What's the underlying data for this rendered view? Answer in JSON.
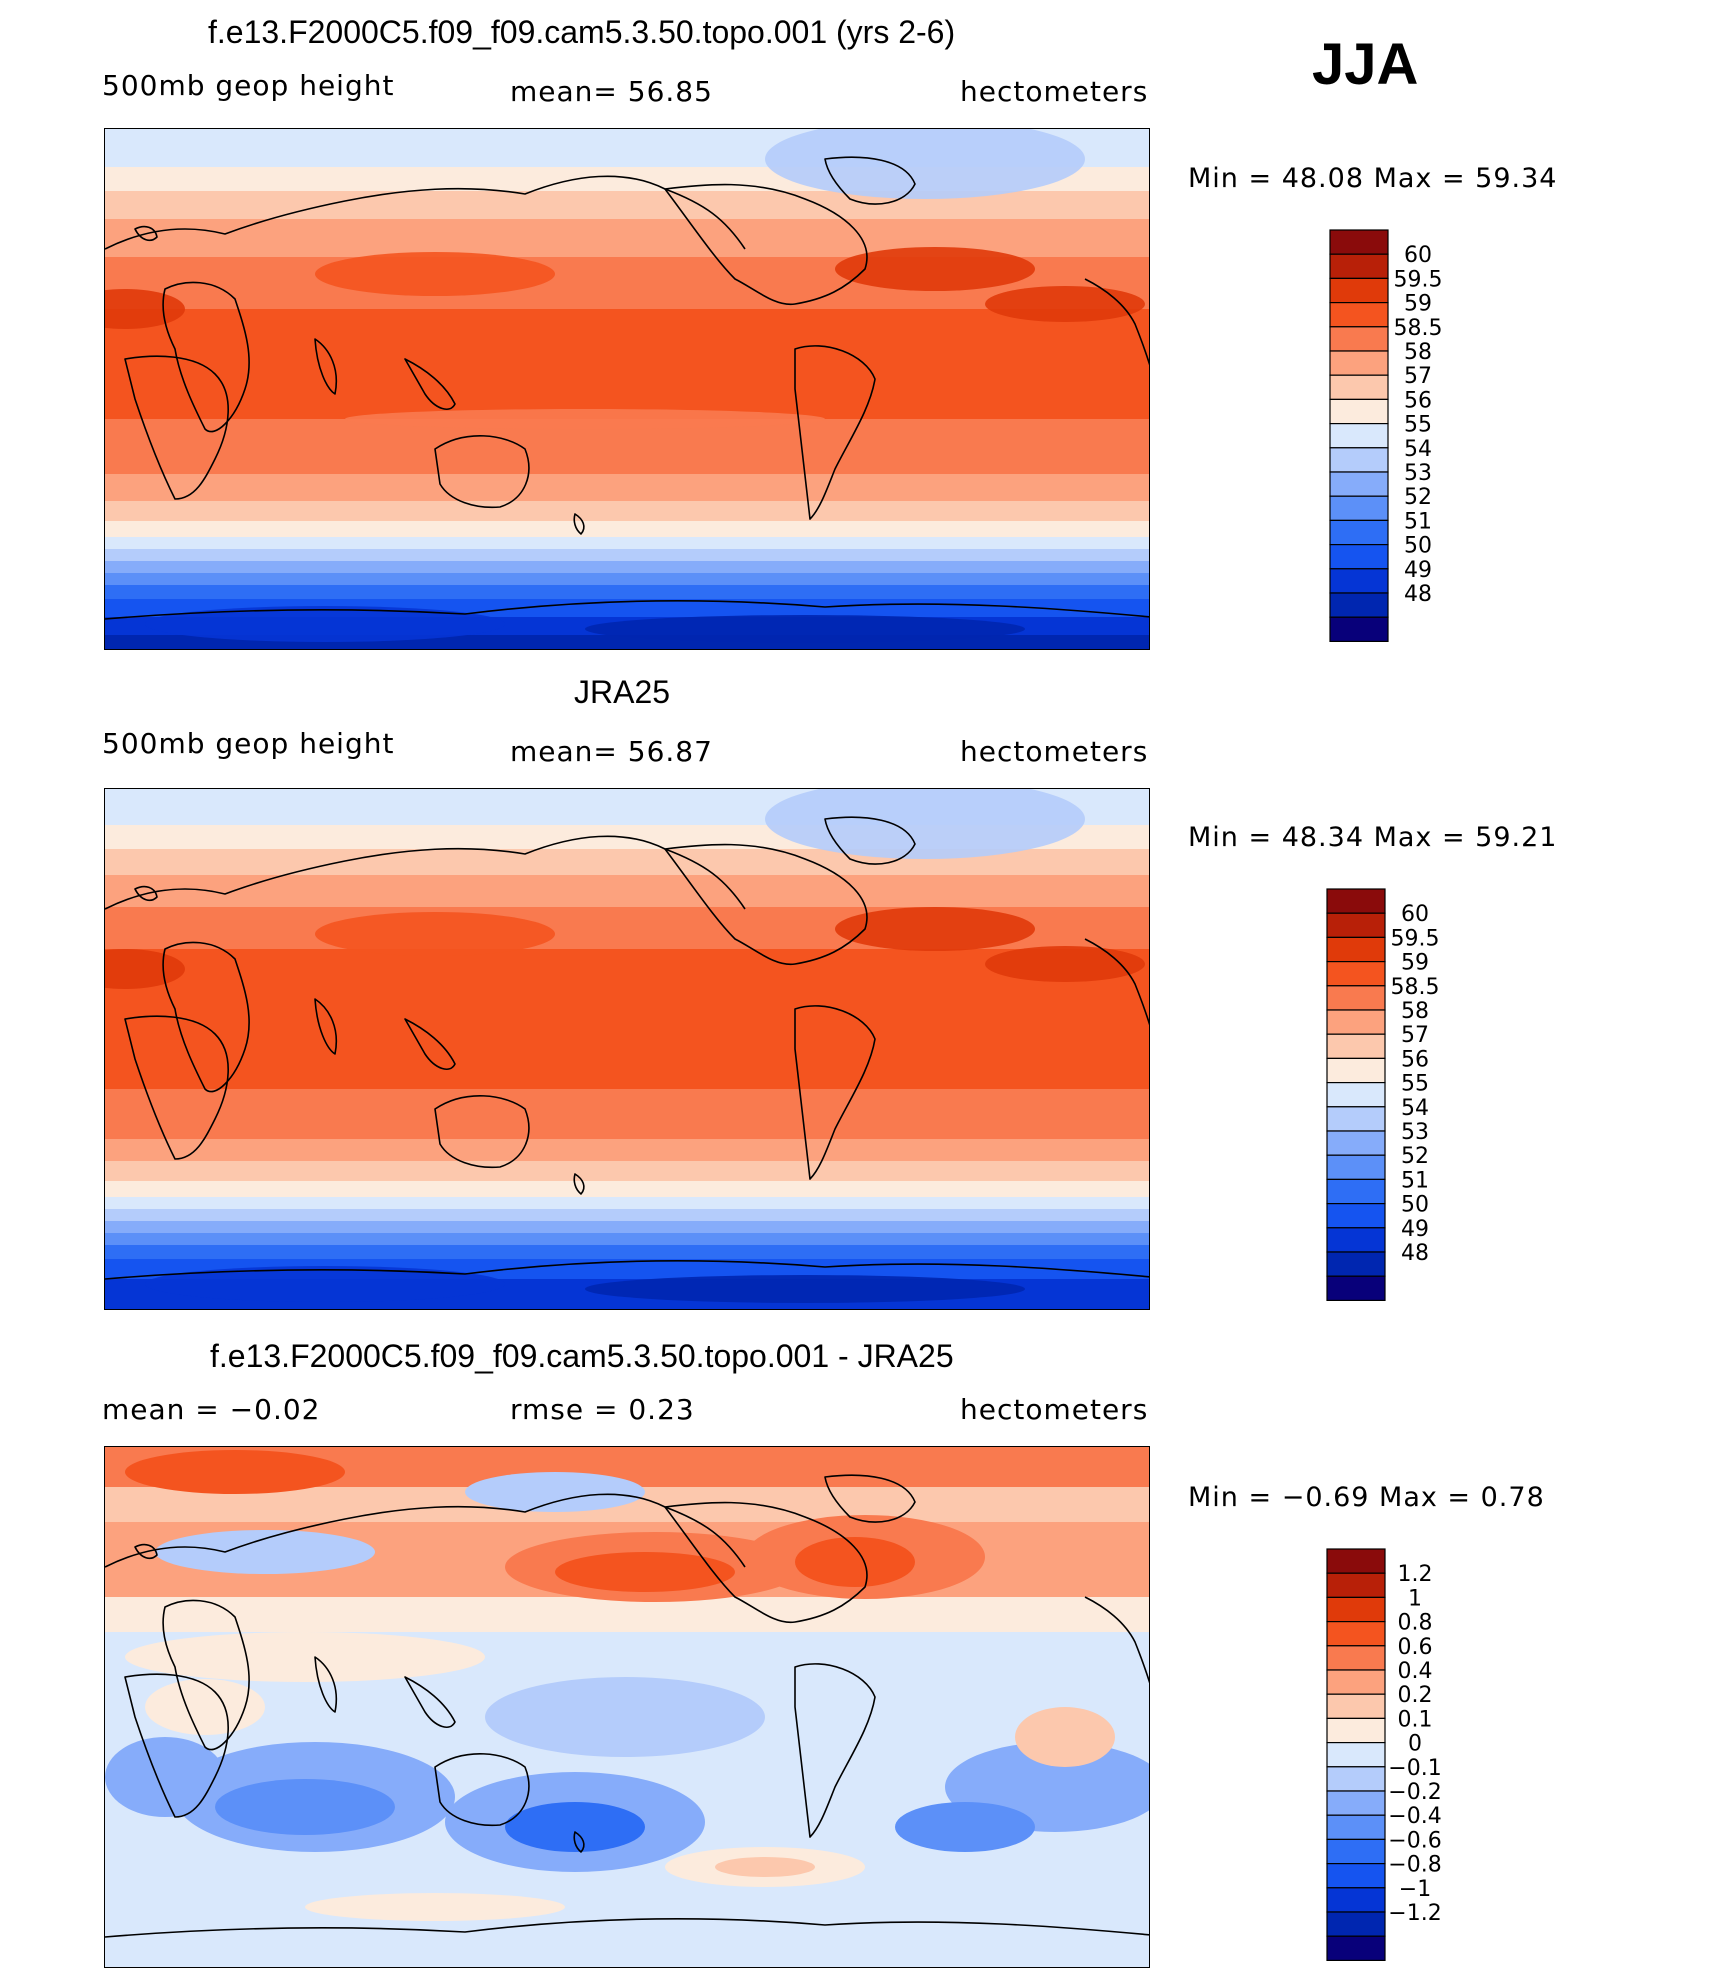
{
  "season": "JJA",
  "colors": {
    "full_scale": [
      "#08007a",
      "#0026b0",
      "#0535d5",
      "#1554f0",
      "#2e6ef5",
      "#5c90f8",
      "#86acfa",
      "#b4ccfb",
      "#d9e8fc",
      "#fcebdd",
      "#fcc8ad",
      "#fca27e",
      "#f97a4f",
      "#f4541f",
      "#e03a0a",
      "#b82008",
      "#8a0b0b"
    ],
    "diff_scale": [
      "#08007a",
      "#0026b0",
      "#0535d5",
      "#1554f0",
      "#2e6ef5",
      "#5c90f8",
      "#86acfa",
      "#b4ccfb",
      "#d9e8fc",
      "#fcebdd",
      "#fcc8ad",
      "#fca27e",
      "#f97a4f",
      "#f4541f",
      "#e03a0a",
      "#b82008",
      "#8a0b0b"
    ]
  },
  "panels": [
    {
      "title": "f.e13.F2000C5.f09_f09.cam5.3.50.topo.001 (yrs 2-6)",
      "left_label": "500mb geop height",
      "center_label": "mean=  56.85",
      "right_label": "hectometers",
      "min_max": "Min =   48.08  Max =   59.34",
      "colorbar_labels": [
        "60",
        "59.5",
        "59",
        "58.5",
        "58",
        "57",
        "56",
        "55",
        "54",
        "53",
        "52",
        "51",
        "50",
        "49",
        "48"
      ],
      "field_type": "absolute"
    },
    {
      "title": "JRA25",
      "left_label": "500mb geop height",
      "center_label": "mean=  56.87",
      "right_label": "hectometers",
      "min_max": "Min =   48.34  Max =   59.21",
      "colorbar_labels": [
        "60",
        "59.5",
        "59",
        "58.5",
        "58",
        "57",
        "56",
        "55",
        "54",
        "53",
        "52",
        "51",
        "50",
        "49",
        "48"
      ],
      "field_type": "absolute"
    },
    {
      "title": "f.e13.F2000C5.f09_f09.cam5.3.50.topo.001 - JRA25",
      "left_label": "mean =   −0.02",
      "center_label": "rmse =    0.23",
      "right_label": "hectometers",
      "min_max": "Min =   −0.69  Max =    0.78",
      "colorbar_labels": [
        "1.2",
        "1",
        "0.8",
        "0.6",
        "0.4",
        "0.2",
        "0.1",
        "0",
        "−0.1",
        "−0.2",
        "−0.4",
        "−0.6",
        "−0.8",
        "−1",
        "−1.2"
      ],
      "field_type": "difference"
    }
  ],
  "chart_data": [
    {
      "type": "heatmap",
      "title": "f.e13.F2000C5.f09_f09.cam5.3.50.topo.001 (yrs 2-6)",
      "variable": "500mb geop height",
      "units": "hectometers",
      "mean": 56.85,
      "min": 48.08,
      "max": 59.34,
      "levels": [
        48,
        49,
        50,
        51,
        52,
        53,
        54,
        55,
        56,
        57,
        58,
        58.5,
        59,
        59.5,
        60
      ]
    },
    {
      "type": "heatmap",
      "title": "JRA25",
      "variable": "500mb geop height",
      "units": "hectometers",
      "mean": 56.87,
      "min": 48.34,
      "max": 59.21,
      "levels": [
        48,
        49,
        50,
        51,
        52,
        53,
        54,
        55,
        56,
        57,
        58,
        58.5,
        59,
        59.5,
        60
      ]
    },
    {
      "type": "heatmap",
      "title": "f.e13.F2000C5.f09_f09.cam5.3.50.topo.001 - JRA25",
      "units": "hectometers",
      "mean": -0.02,
      "rmse": 0.23,
      "min": -0.69,
      "max": 0.78,
      "levels": [
        -1.2,
        -1,
        -0.8,
        -0.6,
        -0.4,
        -0.2,
        -0.1,
        0,
        0.1,
        0.2,
        0.4,
        0.6,
        0.8,
        1,
        1.2
      ]
    }
  ]
}
